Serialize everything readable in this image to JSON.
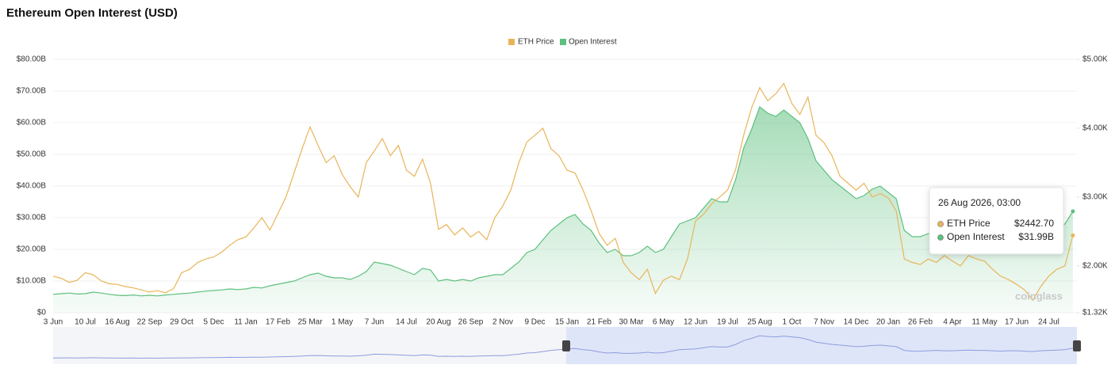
{
  "chart_data": {
    "type": "line",
    "title": "Ethereum Open Interest (USD)",
    "categories": [
      "3 Jun",
      null,
      null,
      null,
      "10 Jul",
      null,
      null,
      null,
      "16 Aug",
      null,
      null,
      null,
      "22 Sep",
      null,
      null,
      null,
      "29 Oct",
      null,
      null,
      null,
      "5 Dec",
      null,
      null,
      null,
      "11 Jan",
      null,
      null,
      null,
      "17 Feb",
      null,
      null,
      null,
      "25 Mar",
      null,
      null,
      null,
      "1 May",
      null,
      null,
      null,
      "7 Jun",
      null,
      null,
      null,
      "14 Jul",
      null,
      null,
      null,
      "20 Aug",
      null,
      null,
      null,
      "26 Sep",
      null,
      null,
      null,
      "2 Nov",
      null,
      null,
      null,
      "9 Dec",
      null,
      null,
      null,
      "15 Jan",
      null,
      null,
      null,
      "21 Feb",
      null,
      null,
      null,
      "30 Mar",
      null,
      null,
      null,
      "6 May",
      null,
      null,
      null,
      "12 Jun",
      null,
      null,
      null,
      "19 Jul",
      null,
      null,
      null,
      "25 Aug",
      null,
      null,
      null,
      "1 Oct",
      null,
      null,
      null,
      "7 Nov",
      null,
      null,
      null,
      "14 Dec",
      null,
      null,
      null,
      "20 Jan",
      null,
      null,
      null,
      "26 Feb",
      null,
      null,
      null,
      "4 Apr",
      null,
      null,
      null,
      "11 May",
      null,
      null,
      null,
      "17 Jun",
      null,
      null,
      null,
      "24 Jul",
      null,
      null,
      null
    ],
    "series": [
      {
        "name": "ETH Price",
        "color": "#e9b459",
        "axis": "y2",
        "type": "line",
        "values": [
          1850,
          1820,
          1760,
          1790,
          1900,
          1870,
          1780,
          1740,
          1730,
          1700,
          1680,
          1650,
          1620,
          1640,
          1610,
          1670,
          1900,
          1950,
          2050,
          2100,
          2130,
          2200,
          2300,
          2380,
          2420,
          2550,
          2700,
          2520,
          2760,
          3000,
          3350,
          3700,
          4020,
          3750,
          3500,
          3600,
          3330,
          3150,
          3000,
          3500,
          3670,
          3850,
          3600,
          3750,
          3390,
          3300,
          3550,
          3200,
          2530,
          2600,
          2450,
          2550,
          2420,
          2500,
          2380,
          2700,
          2870,
          3100,
          3500,
          3800,
          3900,
          4000,
          3700,
          3600,
          3390,
          3350,
          3100,
          2800,
          2470,
          2300,
          2400,
          2050,
          1900,
          1800,
          1950,
          1600,
          1790,
          1850,
          1800,
          2100,
          2650,
          2750,
          2900,
          3000,
          3100,
          3400,
          3900,
          4300,
          4590,
          4400,
          4500,
          4650,
          4360,
          4200,
          4450,
          3900,
          3790,
          3600,
          3300,
          3200,
          3100,
          3200,
          3000,
          3050,
          2990,
          2800,
          2100,
          2050,
          2020,
          2100,
          2050,
          2150,
          2070,
          2000,
          2150,
          2100,
          2070,
          1950,
          1850,
          1800,
          1730,
          1650,
          1500,
          1700,
          1850,
          1950,
          2000,
          2442.7
        ]
      },
      {
        "name": "Open Interest",
        "color": "#5dc07e",
        "type": "area",
        "values": [
          5.8,
          6,
          6.2,
          5.9,
          6,
          6.5,
          6.2,
          5.8,
          5.5,
          5.4,
          5.6,
          5.3,
          5.5,
          5.3,
          5.6,
          5.8,
          6,
          6.2,
          6.5,
          6.8,
          7,
          7.2,
          7.5,
          7.3,
          7.5,
          8,
          7.8,
          8.5,
          9,
          9.5,
          10,
          11,
          12,
          12.5,
          11.5,
          11,
          11,
          10.5,
          11.5,
          13,
          16,
          15.5,
          15,
          14,
          13,
          12,
          14,
          13.5,
          10,
          10.5,
          10,
          10.5,
          10,
          11,
          11.5,
          12,
          12,
          14,
          16,
          19,
          20,
          23,
          26,
          28,
          30,
          31,
          28,
          26,
          22,
          19,
          20,
          18,
          18,
          19,
          21,
          19,
          20,
          24,
          28,
          29,
          30,
          33,
          36,
          35,
          35,
          42,
          52,
          58,
          65,
          63,
          62,
          64,
          62,
          60,
          55,
          48,
          45,
          42,
          40,
          38,
          36,
          37,
          39,
          40,
          38,
          36,
          26,
          24,
          24,
          25,
          26,
          25,
          25,
          26,
          27,
          26,
          26,
          25,
          24,
          25,
          25,
          24,
          23,
          25,
          26,
          27,
          28,
          31.99
        ]
      }
    ],
    "ylim": [
      0,
      80
    ],
    "yticks": [
      {
        "value": 0,
        "label": "$0"
      },
      {
        "value": 10,
        "label": "$10.00B"
      },
      {
        "value": 20,
        "label": "$20.00B"
      },
      {
        "value": 30,
        "label": "$30.00B"
      },
      {
        "value": 40,
        "label": "$40.00B"
      },
      {
        "value": 50,
        "label": "$50.00B"
      },
      {
        "value": 60,
        "label": "$60.00B"
      },
      {
        "value": 70,
        "label": "$70.00B"
      },
      {
        "value": 80,
        "label": "$80.00B"
      }
    ],
    "y2lim": [
      1320,
      5000
    ],
    "y2ticks": [
      {
        "value": 1320,
        "label": "$1.32K"
      },
      {
        "value": 2000,
        "label": "$2.00K"
      },
      {
        "value": 3000,
        "label": "$3.00K"
      },
      {
        "value": 4000,
        "label": "$4.00K"
      },
      {
        "value": 5000,
        "label": "$5.00K"
      }
    ],
    "grid": true,
    "legend": "top",
    "tooltip": {
      "title": "26 Aug 2026, 03:00",
      "rows": [
        {
          "name": "ETH Price",
          "value": 2442.7,
          "label": "$2442.70"
        },
        {
          "name": "Open Interest",
          "value": 31.99,
          "label": "$31.99B"
        }
      ]
    },
    "watermark": "coinglass"
  }
}
